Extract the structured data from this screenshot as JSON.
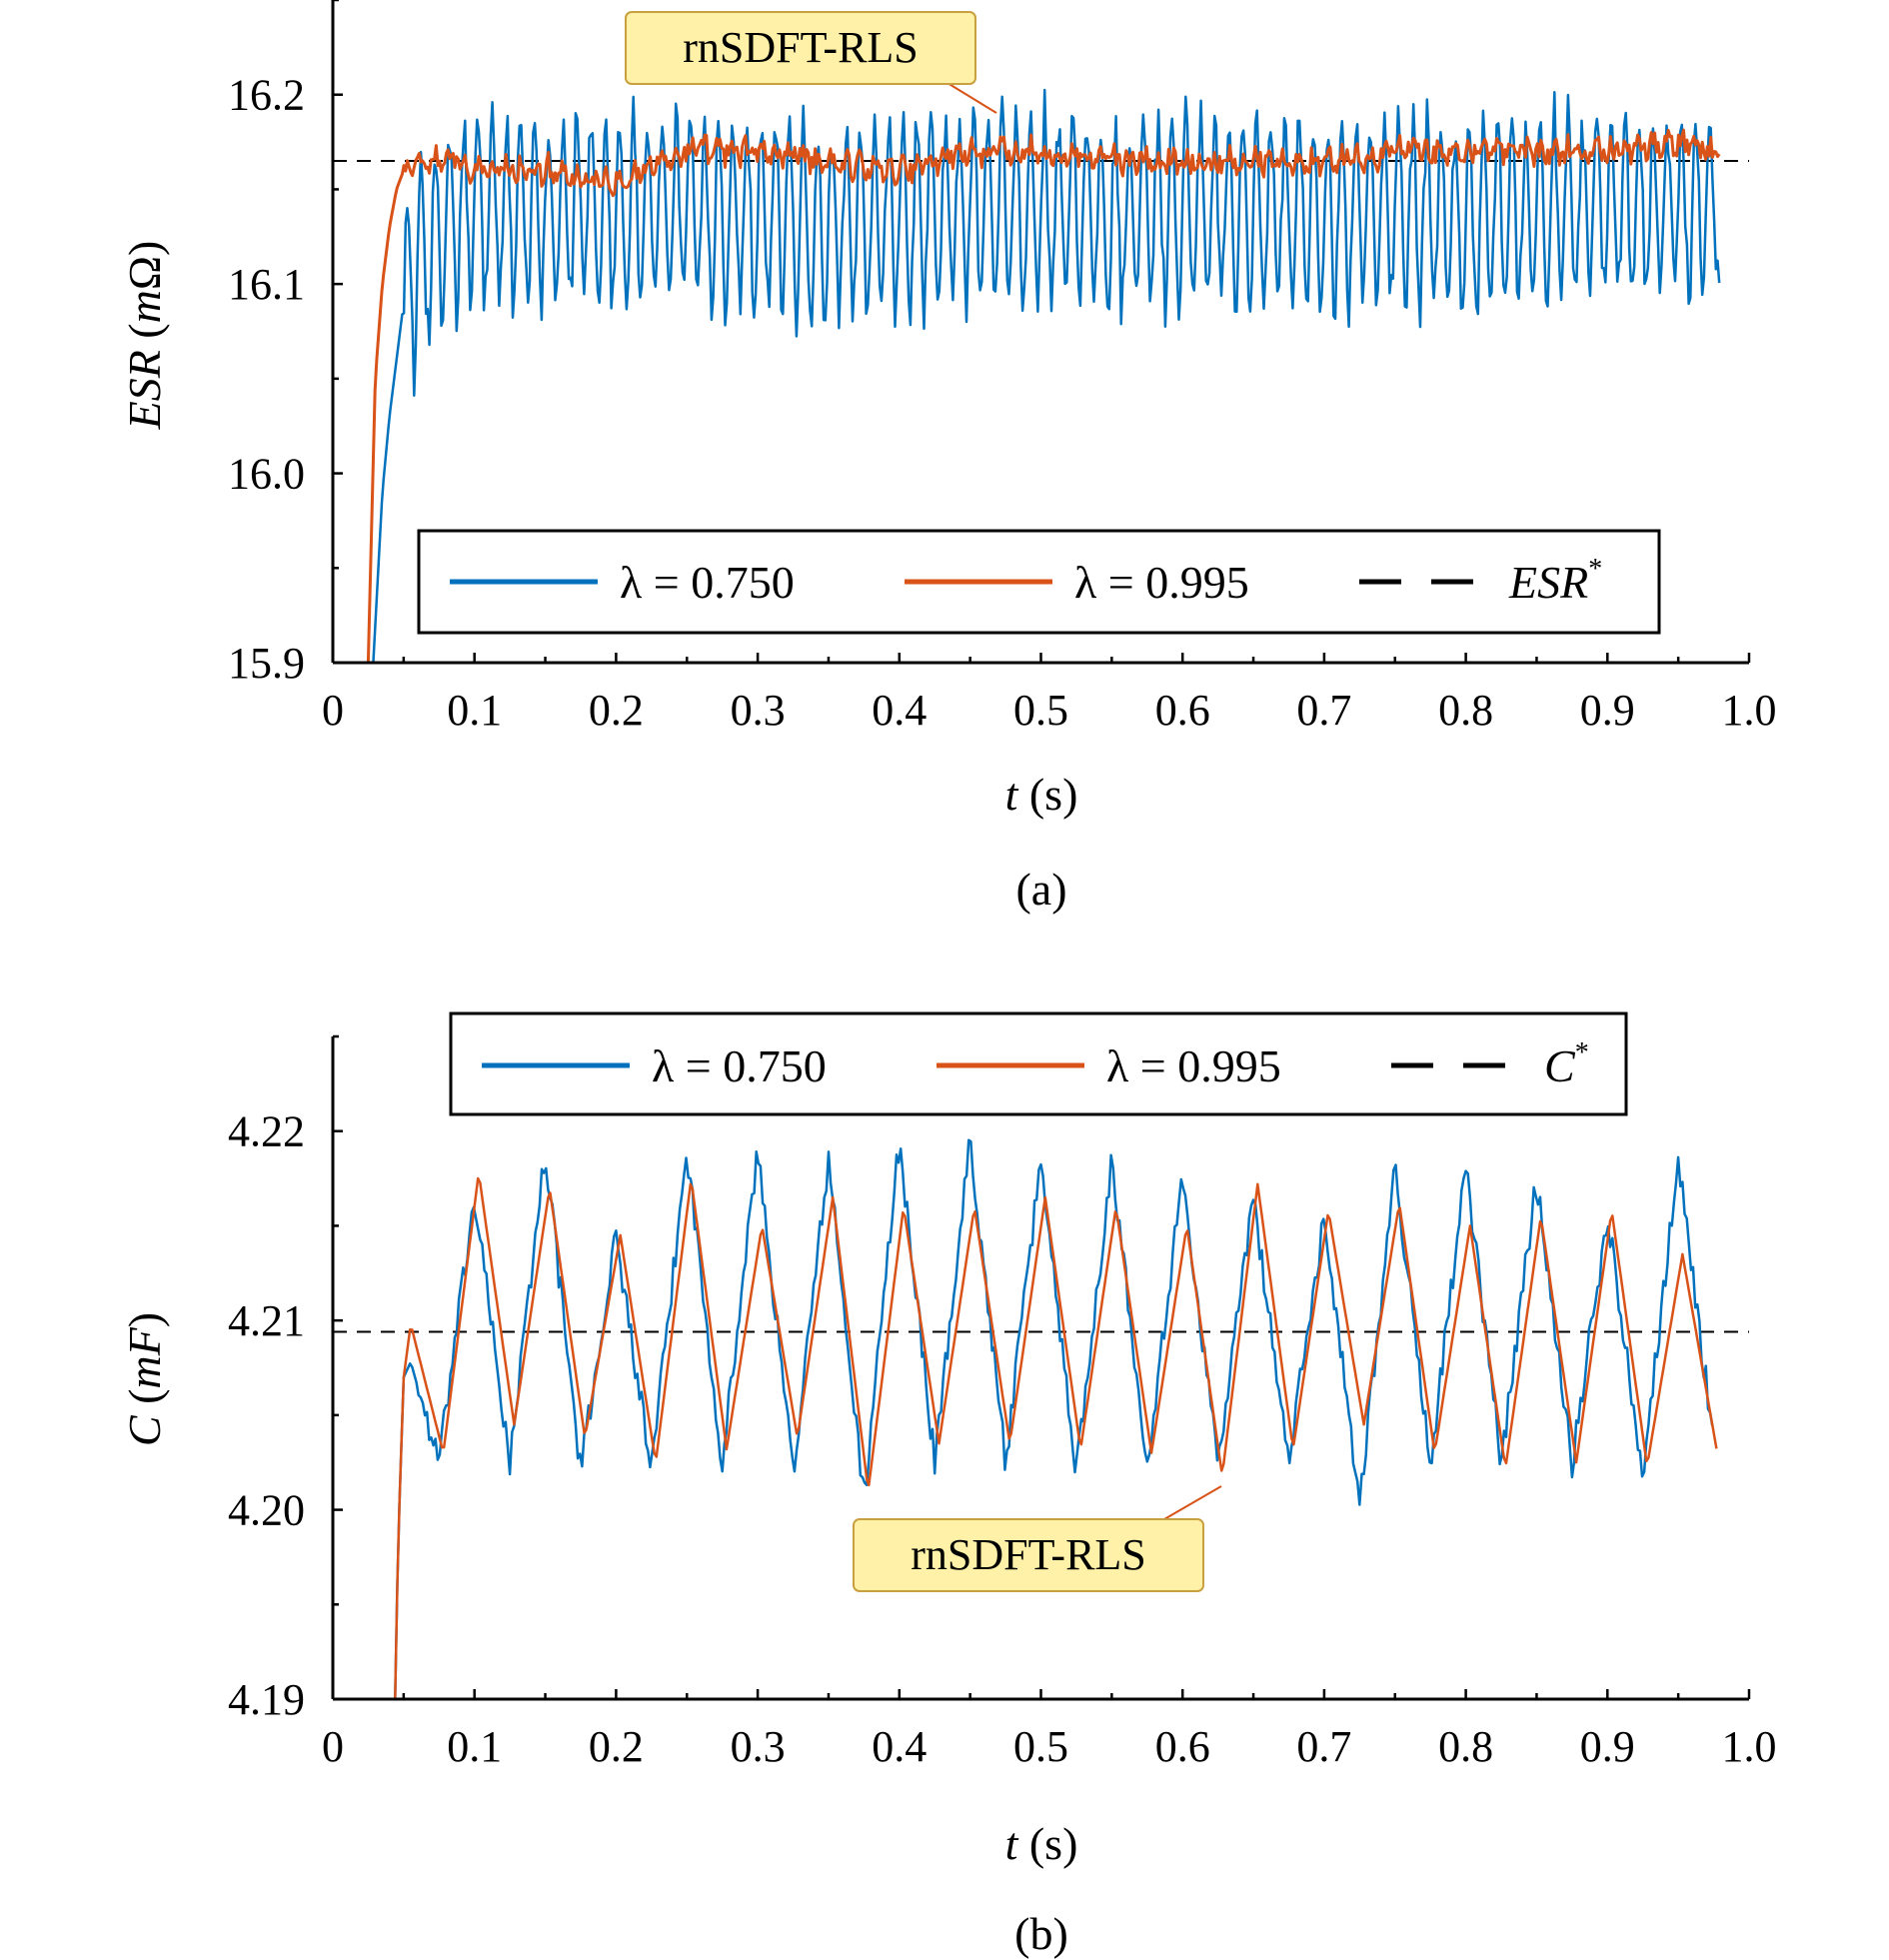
{
  "figure": {
    "panels": [
      "(a)",
      "(b)"
    ]
  },
  "chart_data": [
    {
      "panel": "(a)",
      "type": "line",
      "xlabel_var": "t",
      "xlabel_unit": " (s)",
      "ylabel_var": "ESR",
      "ylabel_unit_open": " (",
      "ylabel_unit_var": "m",
      "ylabel_unit_rest": "Ω)",
      "xlim": [
        0,
        1.0
      ],
      "ylim": [
        15.9,
        16.25
      ],
      "xticks": [
        "0",
        "0.1",
        "0.2",
        "0.3",
        "0.4",
        "0.5",
        "0.6",
        "0.7",
        "0.8",
        "0.9",
        "1.0"
      ],
      "yticks": [
        "15.9",
        "16.0",
        "16.1",
        "16.2"
      ],
      "grid": false,
      "legend_position": "bottom-center",
      "legend": [
        {
          "label": "λ = 0.750",
          "color": "#0072BD"
        },
        {
          "label": "λ = 0.995",
          "color": "#D95319"
        },
        {
          "label": "ESR",
          "superscript": "*",
          "color": "#000000"
        }
      ],
      "callout": "rnSDFT-RLS",
      "reference_value": 16.165,
      "series": [
        {
          "name": "λ = 0.750",
          "color": "#0072BD",
          "x": [
            0.025,
            0.03,
            0.035,
            0.04,
            0.045,
            0.05,
            0.055,
            0.06,
            0.07,
            0.08,
            0.1,
            0.15,
            0.2,
            0.25,
            0.3,
            0.35,
            0.4,
            0.45,
            0.5,
            0.55,
            0.6,
            0.65,
            0.7,
            0.75,
            0.8,
            0.85,
            0.9,
            0.95,
            0.98
          ],
          "y": [
            15.85,
            15.92,
            15.99,
            16.03,
            16.06,
            16.09,
            16.1,
            16.11,
            16.12,
            16.13,
            16.14,
            16.14,
            16.14,
            16.14,
            16.14,
            16.13,
            16.135,
            16.14,
            16.14,
            16.135,
            16.14,
            16.14,
            16.14,
            16.14,
            16.135,
            16.14,
            16.14,
            16.14,
            16.14
          ],
          "oscillation_amplitude": 0.055
        },
        {
          "name": "λ = 0.995",
          "color": "#D95319",
          "x": [
            0.025,
            0.03,
            0.035,
            0.04,
            0.045,
            0.05,
            0.06,
            0.08,
            0.1,
            0.15,
            0.2,
            0.25,
            0.3,
            0.35,
            0.4,
            0.45,
            0.5,
            0.55,
            0.6,
            0.65,
            0.7,
            0.75,
            0.8,
            0.85,
            0.9,
            0.95,
            0.98
          ],
          "y": [
            15.9,
            16.05,
            16.1,
            16.13,
            16.15,
            16.16,
            16.165,
            16.165,
            16.16,
            16.16,
            16.155,
            16.17,
            16.17,
            16.165,
            16.16,
            16.17,
            16.17,
            16.165,
            16.165,
            16.165,
            16.165,
            16.17,
            16.17,
            16.17,
            16.17,
            16.175,
            16.17
          ],
          "oscillation_amplitude": 0.006
        },
        {
          "name": "ESR*",
          "color": "#000000",
          "dashed": true,
          "x": [
            0,
            1.0
          ],
          "y": [
            16.165,
            16.165
          ]
        }
      ]
    },
    {
      "panel": "(b)",
      "type": "line",
      "xlabel_var": "t",
      "xlabel_unit": " (s)",
      "ylabel_var": "C",
      "ylabel_unit_open": " (",
      "ylabel_unit_var": "mF",
      "ylabel_unit_rest": ")",
      "xlim": [
        0,
        1.0
      ],
      "ylim": [
        4.19,
        4.225
      ],
      "xticks": [
        "0",
        "0.1",
        "0.2",
        "0.3",
        "0.4",
        "0.5",
        "0.6",
        "0.7",
        "0.8",
        "0.9",
        "1.0"
      ],
      "yticks": [
        "4.19",
        "4.20",
        "4.21",
        "4.22"
      ],
      "grid": false,
      "legend_position": "top-center",
      "legend": [
        {
          "label": "λ = 0.750",
          "color": "#0072BD"
        },
        {
          "label": "λ = 0.995",
          "color": "#D95319"
        },
        {
          "label": "C",
          "superscript": "*",
          "color": "#000000"
        }
      ],
      "callout": "rnSDFT-RLS",
      "reference_value": 4.2094,
      "series": [
        {
          "name": "λ = 0.750",
          "color": "#0072BD",
          "peak_times": [
            0.1,
            0.15,
            0.2,
            0.25,
            0.3,
            0.35,
            0.4,
            0.45,
            0.5,
            0.55,
            0.6,
            0.65,
            0.7,
            0.75,
            0.8,
            0.85,
            0.9,
            0.95
          ],
          "peaks": [
            4.2165,
            4.219,
            4.2145,
            4.219,
            4.219,
            4.2185,
            4.2195,
            4.2195,
            4.2185,
            4.2185,
            4.2175,
            4.2165,
            4.2155,
            4.218,
            4.218,
            4.2175,
            4.2155,
            4.2185
          ],
          "trough_times": [
            0.075,
            0.125,
            0.175,
            0.225,
            0.275,
            0.325,
            0.375,
            0.425,
            0.475,
            0.525,
            0.575,
            0.625,
            0.675,
            0.725,
            0.775,
            0.825,
            0.875,
            0.925,
            0.975
          ],
          "troughs": [
            4.2025,
            4.2025,
            4.202,
            4.202,
            4.2025,
            4.202,
            4.2005,
            4.2025,
            4.2025,
            4.202,
            4.2025,
            4.2025,
            4.2025,
            4.2005,
            4.2025,
            4.2025,
            4.2025,
            4.202,
            4.2035
          ],
          "start_x": [
            0.044,
            0.046,
            0.05,
            0.055
          ],
          "start_y": [
            4.19,
            4.198,
            4.207,
            4.2078
          ]
        },
        {
          "name": "λ = 0.995",
          "color": "#D95319",
          "peak_times": [
            0.103,
            0.153,
            0.203,
            0.253,
            0.303,
            0.353,
            0.403,
            0.453,
            0.503,
            0.553,
            0.603,
            0.653,
            0.703,
            0.753,
            0.803,
            0.853,
            0.903,
            0.953
          ],
          "peaks": [
            4.2178,
            4.217,
            4.2145,
            4.2175,
            4.215,
            4.2165,
            4.216,
            4.216,
            4.2165,
            4.216,
            4.215,
            4.2172,
            4.2158,
            4.2162,
            4.215,
            4.2155,
            4.2158,
            4.2135
          ],
          "trough_times": [
            0.078,
            0.128,
            0.178,
            0.228,
            0.278,
            0.328,
            0.378,
            0.428,
            0.478,
            0.528,
            0.578,
            0.628,
            0.678,
            0.728,
            0.778,
            0.828,
            0.878,
            0.928,
            0.978
          ],
          "troughs": [
            4.203,
            4.2045,
            4.2038,
            4.2025,
            4.2032,
            4.2038,
            4.201,
            4.2035,
            4.2035,
            4.2032,
            4.203,
            4.2018,
            4.2032,
            4.2045,
            4.203,
            4.2022,
            4.2025,
            4.2023,
            4.2028
          ],
          "start_x": [
            0.044,
            0.046,
            0.05,
            0.055
          ],
          "start_y": [
            4.19,
            4.198,
            4.207,
            4.2098
          ]
        },
        {
          "name": "C*",
          "color": "#000000",
          "dashed": true,
          "x": [
            0,
            1.0
          ],
          "y": [
            4.2094,
            4.2094
          ]
        }
      ]
    }
  ]
}
